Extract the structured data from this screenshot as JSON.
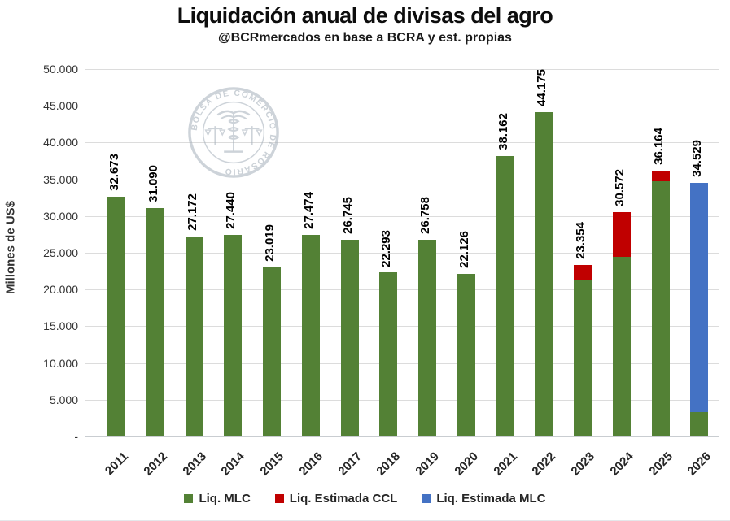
{
  "header": {
    "title": "Liquidación anual de divisas del agro",
    "subtitle": "@BCRmercados en base a BCRA y est. propias"
  },
  "watermark": {
    "ring_text": "BOLSA DE COMERCIO DE ROSARIO",
    "color": "#9fabb6"
  },
  "chart_data": {
    "type": "bar",
    "stacked": true,
    "title": "Liquidación anual de divisas del agro",
    "subtitle": "@BCRmercados en base a BCRA y est. propias",
    "ylabel": "Millones de US$",
    "xlabel": "",
    "ylim": [
      0,
      50000
    ],
    "ytick_interval": 5000,
    "ytick_labels": [
      "50.000",
      "45.000",
      "40.000",
      "35.000",
      "30.000",
      "25.000",
      "20.000",
      "15.000",
      "10.000",
      "5.000",
      "-"
    ],
    "grid": true,
    "legend_position": "bottom",
    "categories": [
      "2011",
      "2012",
      "2013",
      "2014",
      "2015",
      "2016",
      "2017",
      "2018",
      "2019",
      "2020",
      "2021",
      "2022",
      "2023",
      "2024",
      "2025",
      "2026"
    ],
    "bar_total_labels": [
      "32.673",
      "31.090",
      "27.172",
      "27.440",
      "23.019",
      "27.474",
      "26.745",
      "22.293",
      "26.758",
      "22.126",
      "38.162",
      "44.175",
      "23.354",
      "30.572",
      "36.164",
      "34.529"
    ],
    "totals": [
      32673,
      31090,
      27172,
      27440,
      23019,
      27474,
      26745,
      22293,
      26758,
      22126,
      38162,
      44175,
      23354,
      30572,
      36164,
      34529
    ],
    "series": [
      {
        "name": "Liq. MLC",
        "color": "#538135",
        "values": [
          32673,
          31090,
          27172,
          27440,
          23019,
          27474,
          26745,
          22293,
          26758,
          22126,
          38162,
          44175,
          21400,
          24500,
          34700,
          3300
        ]
      },
      {
        "name": "Liq. Estimada CCL",
        "color": "#c00000",
        "values": [
          0,
          0,
          0,
          0,
          0,
          0,
          0,
          0,
          0,
          0,
          0,
          0,
          1954,
          6072,
          1464,
          0
        ]
      },
      {
        "name": "Liq. Estimada MLC",
        "color": "#4472c4",
        "values": [
          0,
          0,
          0,
          0,
          0,
          0,
          0,
          0,
          0,
          0,
          0,
          0,
          0,
          0,
          0,
          31229
        ]
      }
    ]
  },
  "colors": {
    "grid": "#dcdcdc",
    "axis": "#c9cdd1",
    "label": "#000000"
  }
}
